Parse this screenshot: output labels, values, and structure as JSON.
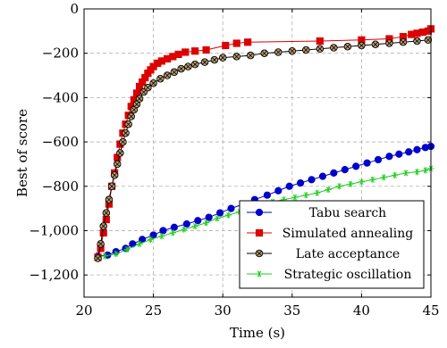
{
  "chart_data": {
    "type": "line",
    "title": "",
    "xlabel": "Time (s)",
    "ylabel": "Best of score",
    "xlim": [
      20,
      45
    ],
    "ylim": [
      -1300,
      0
    ],
    "xticks": [
      20,
      25,
      30,
      35,
      40,
      45
    ],
    "xtick_labels": [
      "20",
      "25",
      "30",
      "35",
      "40",
      "45"
    ],
    "yticks": [
      -1200,
      -1000,
      -800,
      -600,
      -400,
      -200,
      0
    ],
    "ytick_labels": [
      "−1,200",
      "−1,000",
      "−800",
      "−600",
      "−400",
      "−200",
      "0"
    ],
    "grid": true,
    "legend_position": "bottom-right",
    "series": [
      {
        "name": "Tabu search",
        "color": "#0000cc",
        "marker": "circle",
        "x": [
          21.0,
          21.7,
          22.3,
          23.0,
          23.5,
          24.2,
          25.0,
          25.7,
          26.5,
          27.4,
          28.2,
          29.0,
          29.8,
          30.6,
          31.5,
          32.3,
          33.2,
          34.0,
          34.8,
          35.6,
          36.4,
          37.2,
          38.0,
          38.8,
          39.6,
          40.4,
          41.2,
          42.0,
          42.7,
          43.4,
          44.0,
          44.6,
          45.0
        ],
        "y": [
          -1115,
          -1110,
          -1095,
          -1080,
          -1060,
          -1040,
          -1020,
          -1000,
          -985,
          -970,
          -955,
          -940,
          -920,
          -900,
          -880,
          -860,
          -840,
          -820,
          -800,
          -785,
          -770,
          -755,
          -740,
          -725,
          -710,
          -695,
          -680,
          -665,
          -655,
          -645,
          -635,
          -625,
          -620
        ]
      },
      {
        "name": "Simulated annealing",
        "color": "#dd0000",
        "marker": "square",
        "x": [
          21.0,
          21.2,
          21.4,
          21.6,
          21.8,
          22.0,
          22.2,
          22.4,
          22.6,
          22.8,
          23.0,
          23.2,
          23.4,
          23.6,
          23.8,
          24.0,
          24.2,
          24.4,
          24.6,
          24.8,
          25.0,
          25.3,
          25.6,
          26.0,
          26.4,
          26.8,
          27.3,
          28.0,
          28.8,
          30.2,
          31.0,
          31.8,
          37.0,
          40.0,
          42.0,
          43.0,
          43.6,
          44.0,
          44.4,
          44.8,
          45.0
        ],
        "y": [
          -1120,
          -1080,
          -1010,
          -950,
          -880,
          -800,
          -740,
          -670,
          -610,
          -560,
          -520,
          -480,
          -440,
          -410,
          -380,
          -350,
          -330,
          -310,
          -290,
          -275,
          -260,
          -245,
          -235,
          -225,
          -215,
          -205,
          -195,
          -190,
          -185,
          -165,
          -155,
          -150,
          -145,
          -140,
          -135,
          -125,
          -115,
          -110,
          -105,
          -100,
          -90
        ]
      },
      {
        "name": "Late acceptance",
        "color": "#7a3b00",
        "marker": "otimes",
        "x": [
          21.0,
          21.2,
          21.4,
          21.6,
          21.8,
          22.0,
          22.2,
          22.4,
          22.6,
          22.8,
          23.0,
          23.2,
          23.4,
          23.6,
          23.8,
          24.0,
          24.3,
          24.6,
          25.0,
          25.5,
          26.0,
          26.5,
          27.0,
          27.5,
          28.0,
          28.7,
          29.4,
          30.0,
          31.0,
          32.0,
          33.0,
          34.0,
          35.0,
          36.0,
          37.0,
          38.0,
          39.0,
          40.0,
          41.0,
          42.0,
          43.0,
          44.0,
          44.8
        ],
        "y": [
          -1125,
          -1060,
          -980,
          -920,
          -860,
          -800,
          -750,
          -700,
          -650,
          -600,
          -560,
          -520,
          -485,
          -455,
          -430,
          -405,
          -375,
          -355,
          -335,
          -315,
          -300,
          -285,
          -270,
          -260,
          -250,
          -240,
          -230,
          -220,
          -215,
          -210,
          -200,
          -195,
          -190,
          -185,
          -180,
          -175,
          -170,
          -165,
          -160,
          -155,
          -150,
          -145,
          -140
        ]
      },
      {
        "name": "Strategic oscillation",
        "color": "#22cc22",
        "marker": "star",
        "x": [
          21.5,
          22.3,
          23.1,
          24.0,
          24.8,
          25.6,
          26.4,
          27.2,
          28.0,
          28.8,
          29.6,
          30.4,
          31.2,
          32.0,
          32.8,
          33.6,
          34.4,
          35.2,
          36.0,
          36.8,
          37.6,
          38.4,
          39.2,
          40.0,
          40.8,
          41.6,
          42.4,
          43.2,
          44.0,
          44.6,
          45.0
        ],
        "y": [
          -1115,
          -1105,
          -1085,
          -1060,
          -1040,
          -1025,
          -1010,
          -995,
          -980,
          -965,
          -945,
          -930,
          -915,
          -900,
          -885,
          -870,
          -860,
          -850,
          -840,
          -830,
          -815,
          -800,
          -790,
          -780,
          -770,
          -760,
          -750,
          -740,
          -735,
          -728,
          -720
        ]
      }
    ]
  }
}
